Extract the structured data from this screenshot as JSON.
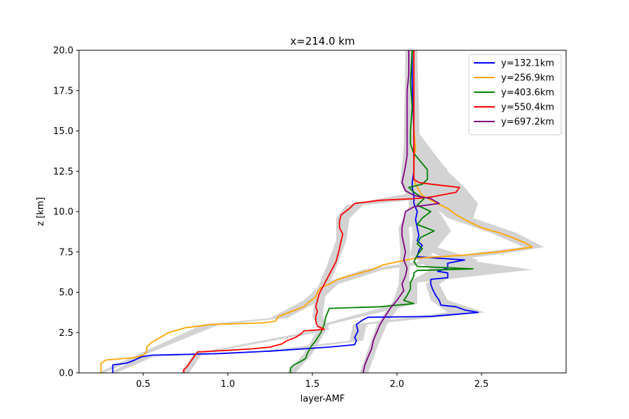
{
  "chart_data": {
    "type": "line",
    "title": "x=214.0 km",
    "xlabel": "layer-AMF",
    "ylabel": "z [km]",
    "xlim": [
      0.12,
      3.0
    ],
    "ylim": [
      0,
      20
    ],
    "xticks": [
      "0.5",
      "1.0",
      "1.5",
      "2.0",
      "2.5"
    ],
    "yticks": [
      "0.0",
      "2.5",
      "5.0",
      "7.5",
      "10.0",
      "12.5",
      "15.0",
      "17.5",
      "20.0"
    ],
    "grid": false,
    "legend_position": "upper-right",
    "uncertainty_band_color": "#d3d3d3",
    "series": [
      {
        "name": "y=132.1km",
        "color": "#0000ff",
        "points": [
          [
            0.32,
            0
          ],
          [
            0.32,
            0.5
          ],
          [
            0.4,
            0.6
          ],
          [
            0.45,
            0.8
          ],
          [
            0.49,
            1.0
          ],
          [
            0.55,
            1.1
          ],
          [
            0.95,
            1.2
          ],
          [
            1.25,
            1.35
          ],
          [
            1.6,
            1.6
          ],
          [
            1.75,
            1.75
          ],
          [
            1.76,
            2.0
          ],
          [
            1.75,
            2.2
          ],
          [
            1.77,
            2.6
          ],
          [
            1.76,
            3.0
          ],
          [
            1.8,
            3.3
          ],
          [
            1.83,
            3.45
          ],
          [
            2.2,
            3.5
          ],
          [
            2.48,
            3.75
          ],
          [
            2.4,
            3.9
          ],
          [
            2.35,
            4.1
          ],
          [
            2.26,
            4.2
          ],
          [
            2.25,
            4.5
          ],
          [
            2.23,
            4.8
          ],
          [
            2.21,
            5.2
          ],
          [
            2.2,
            5.5
          ],
          [
            2.2,
            5.8
          ],
          [
            2.3,
            5.9
          ],
          [
            2.3,
            6.2
          ],
          [
            2.24,
            6.3
          ],
          [
            2.3,
            6.5
          ],
          [
            2.3,
            6.8
          ],
          [
            2.4,
            7.0
          ],
          [
            2.12,
            7.2
          ],
          [
            2.13,
            7.6
          ],
          [
            2.15,
            7.9
          ],
          [
            2.12,
            8.2
          ],
          [
            2.13,
            8.5
          ],
          [
            2.12,
            9.0
          ],
          [
            2.11,
            9.5
          ],
          [
            2.12,
            10.0
          ],
          [
            2.1,
            10.5
          ],
          [
            2.1,
            11.0
          ],
          [
            2.09,
            11.5
          ],
          [
            2.09,
            11.8
          ],
          [
            2.1,
            12.5
          ],
          [
            2.1,
            15.0
          ],
          [
            2.09,
            18.0
          ],
          [
            2.09,
            20
          ]
        ],
        "band": [
          [
            0.3,
            0.34,
            0
          ],
          [
            0.48,
            0.56,
            1.0
          ],
          [
            1.2,
            1.3,
            1.35
          ],
          [
            1.72,
            1.8,
            2.0
          ],
          [
            1.74,
            1.82,
            3.0
          ],
          [
            2.3,
            2.52,
            3.75
          ],
          [
            2.2,
            2.3,
            4.5
          ],
          [
            2.17,
            2.25,
            5.5
          ],
          [
            2.25,
            2.35,
            6.2
          ],
          [
            2.3,
            2.48,
            7.0
          ],
          [
            2.1,
            2.17,
            8.0
          ],
          [
            2.09,
            2.15,
            9.0
          ],
          [
            2.07,
            2.15,
            10.5
          ],
          [
            2.07,
            2.12,
            12.5
          ],
          [
            2.07,
            2.12,
            20
          ]
        ]
      },
      {
        "name": "y=256.9km",
        "color": "#ffa500",
        "points": [
          [
            0.25,
            0
          ],
          [
            0.25,
            0.6
          ],
          [
            0.28,
            0.8
          ],
          [
            0.45,
            0.95
          ],
          [
            0.5,
            1.1
          ],
          [
            0.52,
            1.3
          ],
          [
            0.52,
            1.6
          ],
          [
            0.55,
            1.9
          ],
          [
            0.6,
            2.2
          ],
          [
            0.65,
            2.5
          ],
          [
            0.75,
            2.8
          ],
          [
            0.9,
            3.0
          ],
          [
            1.2,
            3.1
          ],
          [
            1.28,
            3.2
          ],
          [
            1.3,
            3.5
          ],
          [
            1.35,
            3.7
          ],
          [
            1.4,
            3.9
          ],
          [
            1.45,
            4.1
          ],
          [
            1.48,
            4.4
          ],
          [
            1.52,
            4.7
          ],
          [
            1.53,
            5.0
          ],
          [
            1.55,
            5.3
          ],
          [
            1.6,
            5.5
          ],
          [
            1.65,
            5.8
          ],
          [
            1.75,
            6.1
          ],
          [
            1.85,
            6.4
          ],
          [
            1.92,
            6.7
          ],
          [
            2.1,
            7.1
          ],
          [
            2.4,
            7.3
          ],
          [
            2.6,
            7.5
          ],
          [
            2.8,
            7.8
          ],
          [
            2.75,
            8.1
          ],
          [
            2.68,
            8.4
          ],
          [
            2.6,
            8.7
          ],
          [
            2.5,
            9.0
          ],
          [
            2.42,
            9.4
          ],
          [
            2.35,
            9.8
          ],
          [
            2.3,
            10.2
          ],
          [
            2.22,
            10.6
          ],
          [
            2.15,
            11.0
          ],
          [
            2.12,
            11.5
          ],
          [
            2.1,
            12.0
          ],
          [
            2.1,
            13.0
          ],
          [
            2.11,
            14.0
          ],
          [
            2.1,
            15.0
          ],
          [
            2.1,
            16.5
          ],
          [
            2.1,
            18.0
          ],
          [
            2.1,
            20
          ]
        ],
        "band": [
          [
            0.23,
            0.27,
            0
          ],
          [
            0.5,
            0.55,
            1.3
          ],
          [
            0.85,
            0.95,
            3.0
          ],
          [
            1.25,
            1.35,
            3.4
          ],
          [
            1.45,
            1.55,
            4.5
          ],
          [
            1.55,
            1.65,
            5.5
          ],
          [
            1.8,
            1.92,
            6.4
          ],
          [
            2.5,
            2.7,
            7.5
          ],
          [
            2.75,
            2.87,
            7.8
          ],
          [
            2.55,
            2.7,
            8.7
          ],
          [
            2.3,
            2.45,
            9.6
          ],
          [
            2.2,
            2.48,
            10.5
          ],
          [
            2.1,
            2.4,
            11.5
          ],
          [
            2.08,
            2.3,
            12.5
          ],
          [
            2.08,
            2.12,
            15.0
          ],
          [
            2.08,
            2.12,
            20
          ]
        ]
      },
      {
        "name": "y=403.6km",
        "color": "#008000",
        "points": [
          [
            1.37,
            0
          ],
          [
            1.37,
            0.3
          ],
          [
            1.39,
            0.5
          ],
          [
            1.43,
            0.7
          ],
          [
            1.46,
            0.9
          ],
          [
            1.47,
            1.2
          ],
          [
            1.49,
            1.6
          ],
          [
            1.52,
            2.0
          ],
          [
            1.55,
            2.5
          ],
          [
            1.57,
            3.0
          ],
          [
            1.58,
            3.5
          ],
          [
            1.6,
            4.0
          ],
          [
            1.9,
            4.1
          ],
          [
            2.1,
            4.3
          ],
          [
            2.04,
            4.5
          ],
          [
            2.06,
            4.8
          ],
          [
            2.08,
            5.2
          ],
          [
            2.08,
            5.6
          ],
          [
            2.1,
            6.0
          ],
          [
            2.1,
            6.2
          ],
          [
            2.12,
            6.35
          ],
          [
            2.45,
            6.45
          ],
          [
            2.12,
            6.6
          ],
          [
            2.1,
            6.9
          ],
          [
            2.12,
            7.3
          ],
          [
            2.15,
            7.7
          ],
          [
            2.12,
            8.0
          ],
          [
            2.14,
            8.4
          ],
          [
            2.22,
            8.8
          ],
          [
            2.12,
            9.2
          ],
          [
            2.15,
            9.6
          ],
          [
            2.2,
            10.0
          ],
          [
            2.12,
            10.4
          ],
          [
            2.16,
            10.8
          ],
          [
            2.1,
            11.2
          ],
          [
            2.07,
            11.5
          ],
          [
            2.15,
            11.7
          ],
          [
            2.18,
            12.0
          ],
          [
            2.18,
            12.6
          ],
          [
            2.1,
            13.6
          ],
          [
            2.08,
            14.2
          ],
          [
            2.08,
            15.0
          ],
          [
            2.09,
            16.5
          ],
          [
            2.08,
            18.0
          ],
          [
            2.09,
            20
          ]
        ],
        "band": [
          [
            1.35,
            1.4,
            0
          ],
          [
            1.45,
            1.5,
            1.2
          ],
          [
            1.55,
            1.6,
            3.0
          ],
          [
            2.0,
            2.12,
            4.3
          ],
          [
            2.06,
            2.12,
            5.6
          ],
          [
            2.2,
            2.8,
            6.4
          ],
          [
            2.08,
            2.2,
            7.3
          ],
          [
            2.1,
            2.32,
            8.8
          ],
          [
            2.1,
            2.25,
            10.0
          ],
          [
            2.05,
            2.2,
            11.5
          ],
          [
            2.1,
            2.3,
            12.6
          ],
          [
            2.08,
            2.12,
            14.5
          ],
          [
            2.06,
            2.12,
            20
          ]
        ]
      },
      {
        "name": "y=550.4km",
        "color": "#ff0000",
        "points": [
          [
            0.74,
            0
          ],
          [
            0.74,
            0.2
          ],
          [
            0.76,
            0.4
          ],
          [
            0.78,
            0.7
          ],
          [
            0.8,
            1.0
          ],
          [
            0.82,
            1.3
          ],
          [
            1.0,
            1.4
          ],
          [
            1.15,
            1.5
          ],
          [
            1.25,
            1.6
          ],
          [
            1.32,
            1.8
          ],
          [
            1.35,
            2.0
          ],
          [
            1.4,
            2.2
          ],
          [
            1.43,
            2.4
          ],
          [
            1.45,
            2.6
          ],
          [
            1.57,
            2.7
          ],
          [
            1.53,
            2.9
          ],
          [
            1.52,
            3.2
          ],
          [
            1.52,
            3.5
          ],
          [
            1.53,
            3.8
          ],
          [
            1.52,
            4.1
          ],
          [
            1.53,
            4.5
          ],
          [
            1.54,
            4.9
          ],
          [
            1.56,
            5.3
          ],
          [
            1.58,
            5.7
          ],
          [
            1.6,
            6.1
          ],
          [
            1.62,
            6.5
          ],
          [
            1.64,
            6.9
          ],
          [
            1.65,
            7.3
          ],
          [
            1.66,
            7.7
          ],
          [
            1.67,
            8.2
          ],
          [
            1.68,
            8.6
          ],
          [
            1.66,
            9.0
          ],
          [
            1.66,
            9.4
          ],
          [
            1.67,
            9.8
          ],
          [
            1.72,
            10.2
          ],
          [
            1.75,
            10.5
          ],
          [
            1.9,
            10.7
          ],
          [
            2.1,
            10.8
          ],
          [
            2.2,
            10.9
          ],
          [
            2.35,
            11.2
          ],
          [
            2.37,
            11.5
          ],
          [
            2.2,
            11.7
          ],
          [
            2.13,
            11.8
          ],
          [
            2.1,
            12.0
          ],
          [
            2.1,
            13.0
          ],
          [
            2.1,
            15.0
          ],
          [
            2.1,
            16.5
          ],
          [
            2.1,
            18.0
          ],
          [
            2.1,
            20
          ]
        ],
        "band": [
          [
            0.72,
            0.77,
            0
          ],
          [
            0.8,
            0.85,
            1.2
          ],
          [
            1.4,
            1.48,
            2.4
          ],
          [
            1.55,
            1.6,
            2.7
          ],
          [
            1.5,
            1.56,
            3.5
          ],
          [
            1.52,
            1.58,
            5.0
          ],
          [
            1.58,
            1.64,
            6.5
          ],
          [
            1.64,
            1.7,
            8.2
          ],
          [
            1.64,
            1.72,
            9.6
          ],
          [
            1.7,
            1.8,
            10.4
          ],
          [
            2.0,
            2.35,
            11.0
          ],
          [
            2.3,
            2.4,
            11.5
          ],
          [
            2.08,
            2.14,
            12.5
          ],
          [
            2.08,
            2.12,
            20
          ]
        ]
      },
      {
        "name": "y=697.2km",
        "color": "#800080",
        "points": [
          [
            1.8,
            0
          ],
          [
            1.81,
            0.5
          ],
          [
            1.83,
            1.0
          ],
          [
            1.85,
            1.5
          ],
          [
            1.86,
            2.0
          ],
          [
            1.88,
            2.5
          ],
          [
            1.9,
            3.0
          ],
          [
            1.93,
            3.5
          ],
          [
            1.96,
            4.0
          ],
          [
            2.0,
            4.5
          ],
          [
            2.02,
            4.8
          ],
          [
            2.04,
            5.1
          ],
          [
            2.03,
            5.5
          ],
          [
            2.05,
            6.0
          ],
          [
            2.06,
            6.5
          ],
          [
            2.04,
            7.0
          ],
          [
            2.05,
            7.5
          ],
          [
            2.04,
            8.0
          ],
          [
            2.03,
            8.5
          ],
          [
            2.03,
            9.0
          ],
          [
            2.04,
            9.5
          ],
          [
            2.05,
            10.0
          ],
          [
            2.1,
            10.3
          ],
          [
            2.25,
            10.5
          ],
          [
            2.2,
            10.8
          ],
          [
            2.1,
            11.0
          ],
          [
            2.05,
            11.3
          ],
          [
            2.03,
            11.8
          ],
          [
            2.04,
            12.3
          ],
          [
            2.05,
            12.8
          ],
          [
            2.06,
            13.5
          ],
          [
            2.06,
            14.5
          ],
          [
            2.06,
            15.5
          ],
          [
            2.06,
            16.5
          ],
          [
            2.06,
            17.5
          ],
          [
            2.07,
            18.5
          ],
          [
            2.07,
            20
          ]
        ],
        "band": [
          [
            1.78,
            1.83,
            0
          ],
          [
            1.83,
            1.88,
            1.5
          ],
          [
            1.88,
            1.94,
            3.0
          ],
          [
            1.98,
            2.04,
            4.5
          ],
          [
            2.01,
            2.07,
            5.5
          ],
          [
            2.02,
            2.08,
            7.5
          ],
          [
            2.01,
            2.07,
            9.0
          ],
          [
            2.08,
            2.28,
            10.5
          ],
          [
            2.02,
            2.07,
            11.8
          ],
          [
            2.04,
            2.08,
            14.0
          ],
          [
            2.05,
            2.09,
            20
          ]
        ]
      }
    ]
  }
}
